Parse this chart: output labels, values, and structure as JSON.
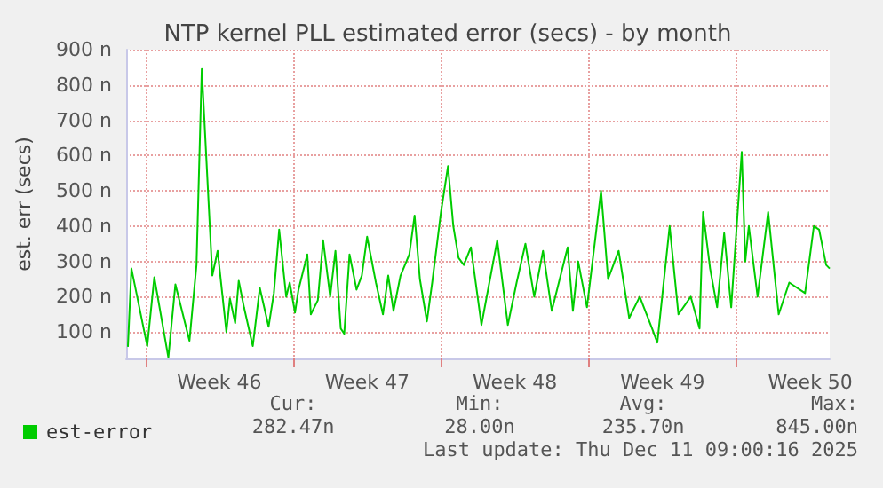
{
  "chart_data": {
    "type": "line",
    "title": "NTP kernel PLL estimated error (secs) - by month",
    "ylabel": "est. err (secs)",
    "x": [
      "2025-11-08T03:00",
      "2025-11-08T07:00",
      "2025-11-09T01:00",
      "2025-11-09T09:00",
      "2025-11-10T01:00",
      "2025-11-10T09:00",
      "2025-11-11T01:00",
      "2025-11-11T09:00",
      "2025-11-11T15:00",
      "2025-11-12T03:00",
      "2025-11-12T09:00",
      "2025-11-12T19:00",
      "2025-11-12T23:00",
      "2025-11-13T05:00",
      "2025-11-13T09:00",
      "2025-11-13T15:00",
      "2025-11-14T01:00",
      "2025-11-14T09:00",
      "2025-11-14T19:00",
      "2025-11-15T01:00",
      "2025-11-15T07:00",
      "2025-11-15T15:00",
      "2025-11-15T19:00",
      "2025-11-16T01:00",
      "2025-11-16T05:00",
      "2025-11-16T15:00",
      "2025-11-16T19:00",
      "2025-11-17T03:00",
      "2025-11-17T09:00",
      "2025-11-17T17:00",
      "2025-11-17T23:00",
      "2025-11-18T05:00",
      "2025-11-18T09:00",
      "2025-11-18T15:00",
      "2025-11-18T23:00",
      "2025-11-19T05:00",
      "2025-11-19T11:00",
      "2025-11-19T21:00",
      "2025-11-20T05:00",
      "2025-11-20T11:00",
      "2025-11-20T17:00",
      "2025-11-21T01:00",
      "2025-11-21T11:00",
      "2025-11-21T17:00",
      "2025-11-21T23:00",
      "2025-11-22T07:00",
      "2025-11-22T13:00",
      "2025-11-22T23:00",
      "2025-11-23T07:00",
      "2025-11-23T13:00",
      "2025-11-23T19:00",
      "2025-11-24T01:00",
      "2025-11-24T09:00",
      "2025-11-24T21:00",
      "2025-11-25T15:00",
      "2025-11-26T03:00",
      "2025-11-26T13:00",
      "2025-11-26T23:00",
      "2025-11-27T09:00",
      "2025-11-27T19:00",
      "2025-11-28T05:00",
      "2025-11-28T23:00",
      "2025-11-29T05:00",
      "2025-11-29T11:00",
      "2025-11-29T21:00",
      "2025-11-30T13:00",
      "2025-11-30T21:00",
      "2025-12-01T09:00",
      "2025-12-01T21:00",
      "2025-12-02T09:00",
      "2025-12-02T23:00",
      "2025-12-03T05:00",
      "2025-12-03T19:00",
      "2025-12-04T05:00",
      "2025-12-04T19:00",
      "2025-12-05T05:00",
      "2025-12-05T09:00",
      "2025-12-05T17:00",
      "2025-12-06T01:00",
      "2025-12-06T09:00",
      "2025-12-06T17:00",
      "2025-12-07T05:00",
      "2025-12-07T09:00",
      "2025-12-07T13:00",
      "2025-12-07T23:00",
      "2025-12-08T11:00",
      "2025-12-08T23:00",
      "2025-12-09T11:00",
      "2025-12-10T05:00",
      "2025-12-10T15:00",
      "2025-12-10T21:00",
      "2025-12-11T05:00",
      "2025-12-11T09:00"
    ],
    "series": [
      {
        "name": "est-error",
        "color": "#00cc00",
        "values": [
          58,
          280,
          60,
          255,
          28,
          235,
          75,
          290,
          845,
          260,
          330,
          100,
          195,
          125,
          245,
          170,
          60,
          225,
          115,
          210,
          390,
          200,
          240,
          155,
          220,
          320,
          150,
          190,
          360,
          200,
          330,
          110,
          95,
          320,
          220,
          260,
          370,
          240,
          150,
          260,
          160,
          260,
          320,
          430,
          250,
          130,
          240,
          440,
          570,
          400,
          310,
          290,
          340,
          120,
          360,
          120,
          240,
          350,
          200,
          330,
          160,
          340,
          160,
          300,
          170,
          500,
          250,
          330,
          140,
          200,
          110,
          70,
          400,
          150,
          200,
          110,
          440,
          280,
          170,
          380,
          170,
          610,
          300,
          400,
          200,
          440,
          150,
          240,
          210,
          400,
          390,
          290,
          280
        ]
      }
    ],
    "xlim": [
      "2025-11-08T01:00",
      "2025-12-11T09:00"
    ],
    "xticks": [
      {
        "value": "2025-11-08T23:00",
        "label": null
      },
      {
        "value": "2025-11-12T11:00",
        "label": "Week 46"
      },
      {
        "value": "2025-11-15T23:00",
        "label": null
      },
      {
        "value": "2025-11-19T11:00",
        "label": "Week 47"
      },
      {
        "value": "2025-11-22T23:00",
        "label": null
      },
      {
        "value": "2025-11-26T11:00",
        "label": "Week 48"
      },
      {
        "value": "2025-11-29T23:00",
        "label": null
      },
      {
        "value": "2025-12-03T11:00",
        "label": "Week 49"
      },
      {
        "value": "2025-12-06T23:00",
        "label": null
      },
      {
        "value": "2025-12-10T11:00",
        "label": "Week 50"
      }
    ],
    "ylim": [
      25,
      900
    ],
    "yticks": [
      {
        "value": 100,
        "label": "100 n"
      },
      {
        "value": 200,
        "label": "200 n"
      },
      {
        "value": 300,
        "label": "300 n"
      },
      {
        "value": 400,
        "label": "400 n"
      },
      {
        "value": 500,
        "label": "500 n"
      },
      {
        "value": 600,
        "label": "600 n"
      },
      {
        "value": 700,
        "label": "700 n"
      },
      {
        "value": 800,
        "label": "800 n"
      },
      {
        "value": 900,
        "label": "900 n"
      }
    ],
    "grid": true,
    "legend": "bottom left",
    "marker": "none",
    "line_style": "solid",
    "annotations": [
      "Cur:",
      "282.47n",
      "Min:",
      "28.00n",
      "Avg:",
      "235.70n",
      "Max:",
      "845.00n",
      "Last update: Thu Dec 11 09:00:16 2025"
    ]
  }
}
